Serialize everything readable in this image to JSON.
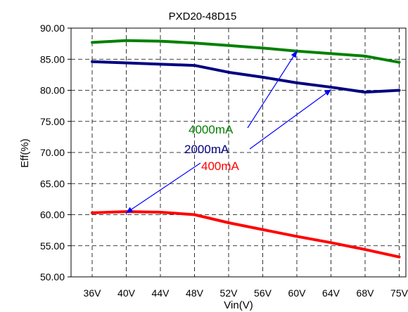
{
  "chart_data": {
    "type": "line",
    "title": "PXD20-48D15",
    "xlabel": "Vin(V)",
    "ylabel": "Eff(%)",
    "categories": [
      "36V",
      "40V",
      "44V",
      "48V",
      "52V",
      "56V",
      "60V",
      "64V",
      "68V",
      "75V"
    ],
    "ylim": [
      50,
      90
    ],
    "yticks": [
      "50.00",
      "55.00",
      "60.00",
      "65.00",
      "70.00",
      "75.00",
      "80.00",
      "85.00",
      "90.00"
    ],
    "grid": true,
    "series": [
      {
        "name": "4000mA",
        "color": "#008000",
        "values": [
          87.7,
          88.0,
          87.9,
          87.6,
          87.2,
          86.8,
          86.3,
          85.9,
          85.5,
          84.5
        ]
      },
      {
        "name": "2000mA",
        "color": "#000080",
        "values": [
          84.6,
          84.4,
          84.2,
          84.0,
          82.9,
          82.1,
          81.2,
          80.5,
          79.7,
          80.0
        ]
      },
      {
        "name": "400mA",
        "color": "#ff0000",
        "values": [
          60.3,
          60.5,
          60.4,
          60.0,
          58.7,
          57.6,
          56.5,
          55.5,
          54.4,
          53.2
        ]
      }
    ],
    "annotations": [
      {
        "text": "4000mA",
        "color": "#008000",
        "arrow_to": {
          "x": "60V",
          "y": 86.3
        }
      },
      {
        "text": "2000mA",
        "color": "#000080",
        "arrow_to": {
          "x": "64V",
          "y": 80.1
        }
      },
      {
        "text": "400mA",
        "color": "#ff0000",
        "arrow_to": {
          "x": "40V",
          "y": 60.3
        }
      }
    ]
  }
}
